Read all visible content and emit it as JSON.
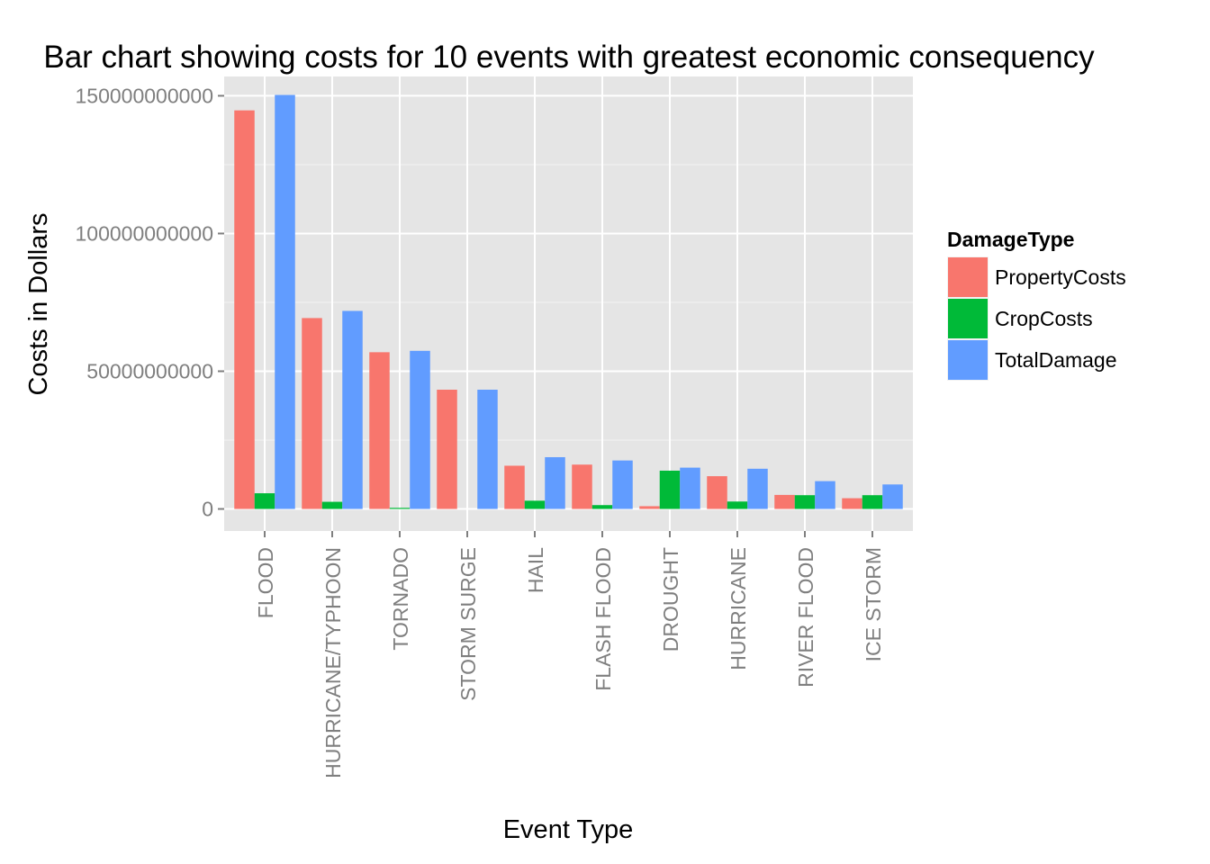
{
  "chart_data": {
    "type": "bar",
    "title": "Bar chart showing  costs for 10 events with greatest economic consequency",
    "xlabel": "Event Type",
    "ylabel": "Costs in Dollars",
    "ylim": [
      -8000000000,
      157000000000
    ],
    "yticks": [
      0,
      50000000000,
      100000000000,
      150000000000
    ],
    "ytick_labels": [
      "0",
      "50000000000",
      "100000000000",
      "150000000000"
    ],
    "grid": true,
    "legend": {
      "title": "DamageType",
      "position": "right"
    },
    "categories": [
      "FLOOD",
      "HURRICANE/TYPHOON",
      "TORNADO",
      "STORM SURGE",
      "HAIL",
      "FLASH FLOOD",
      "DROUGHT",
      "HURRICANE",
      "RIVER FLOOD",
      "ICE STORM"
    ],
    "series": [
      {
        "name": "PropertyCosts",
        "color": "#F8766D",
        "values": [
          144700000000,
          69300000000,
          56900000000,
          43300000000,
          15700000000,
          16100000000,
          1000000000,
          11900000000,
          5100000000,
          3900000000
        ]
      },
      {
        "name": "CropCosts",
        "color": "#00BA38",
        "values": [
          5700000000,
          2600000000,
          400000000,
          0,
          3000000000,
          1400000000,
          13900000000,
          2700000000,
          5000000000,
          5000000000
        ]
      },
      {
        "name": "TotalDamage",
        "color": "#619CFF",
        "values": [
          150300000000,
          71900000000,
          57400000000,
          43300000000,
          18800000000,
          17600000000,
          15000000000,
          14600000000,
          10100000000,
          8900000000
        ]
      }
    ]
  },
  "colors": {
    "panel_background": "#E5E5E5",
    "grid_major": "#FFFFFF",
    "grid_minor": "#F2F2F2",
    "tick_text": "#7F7F7F"
  }
}
